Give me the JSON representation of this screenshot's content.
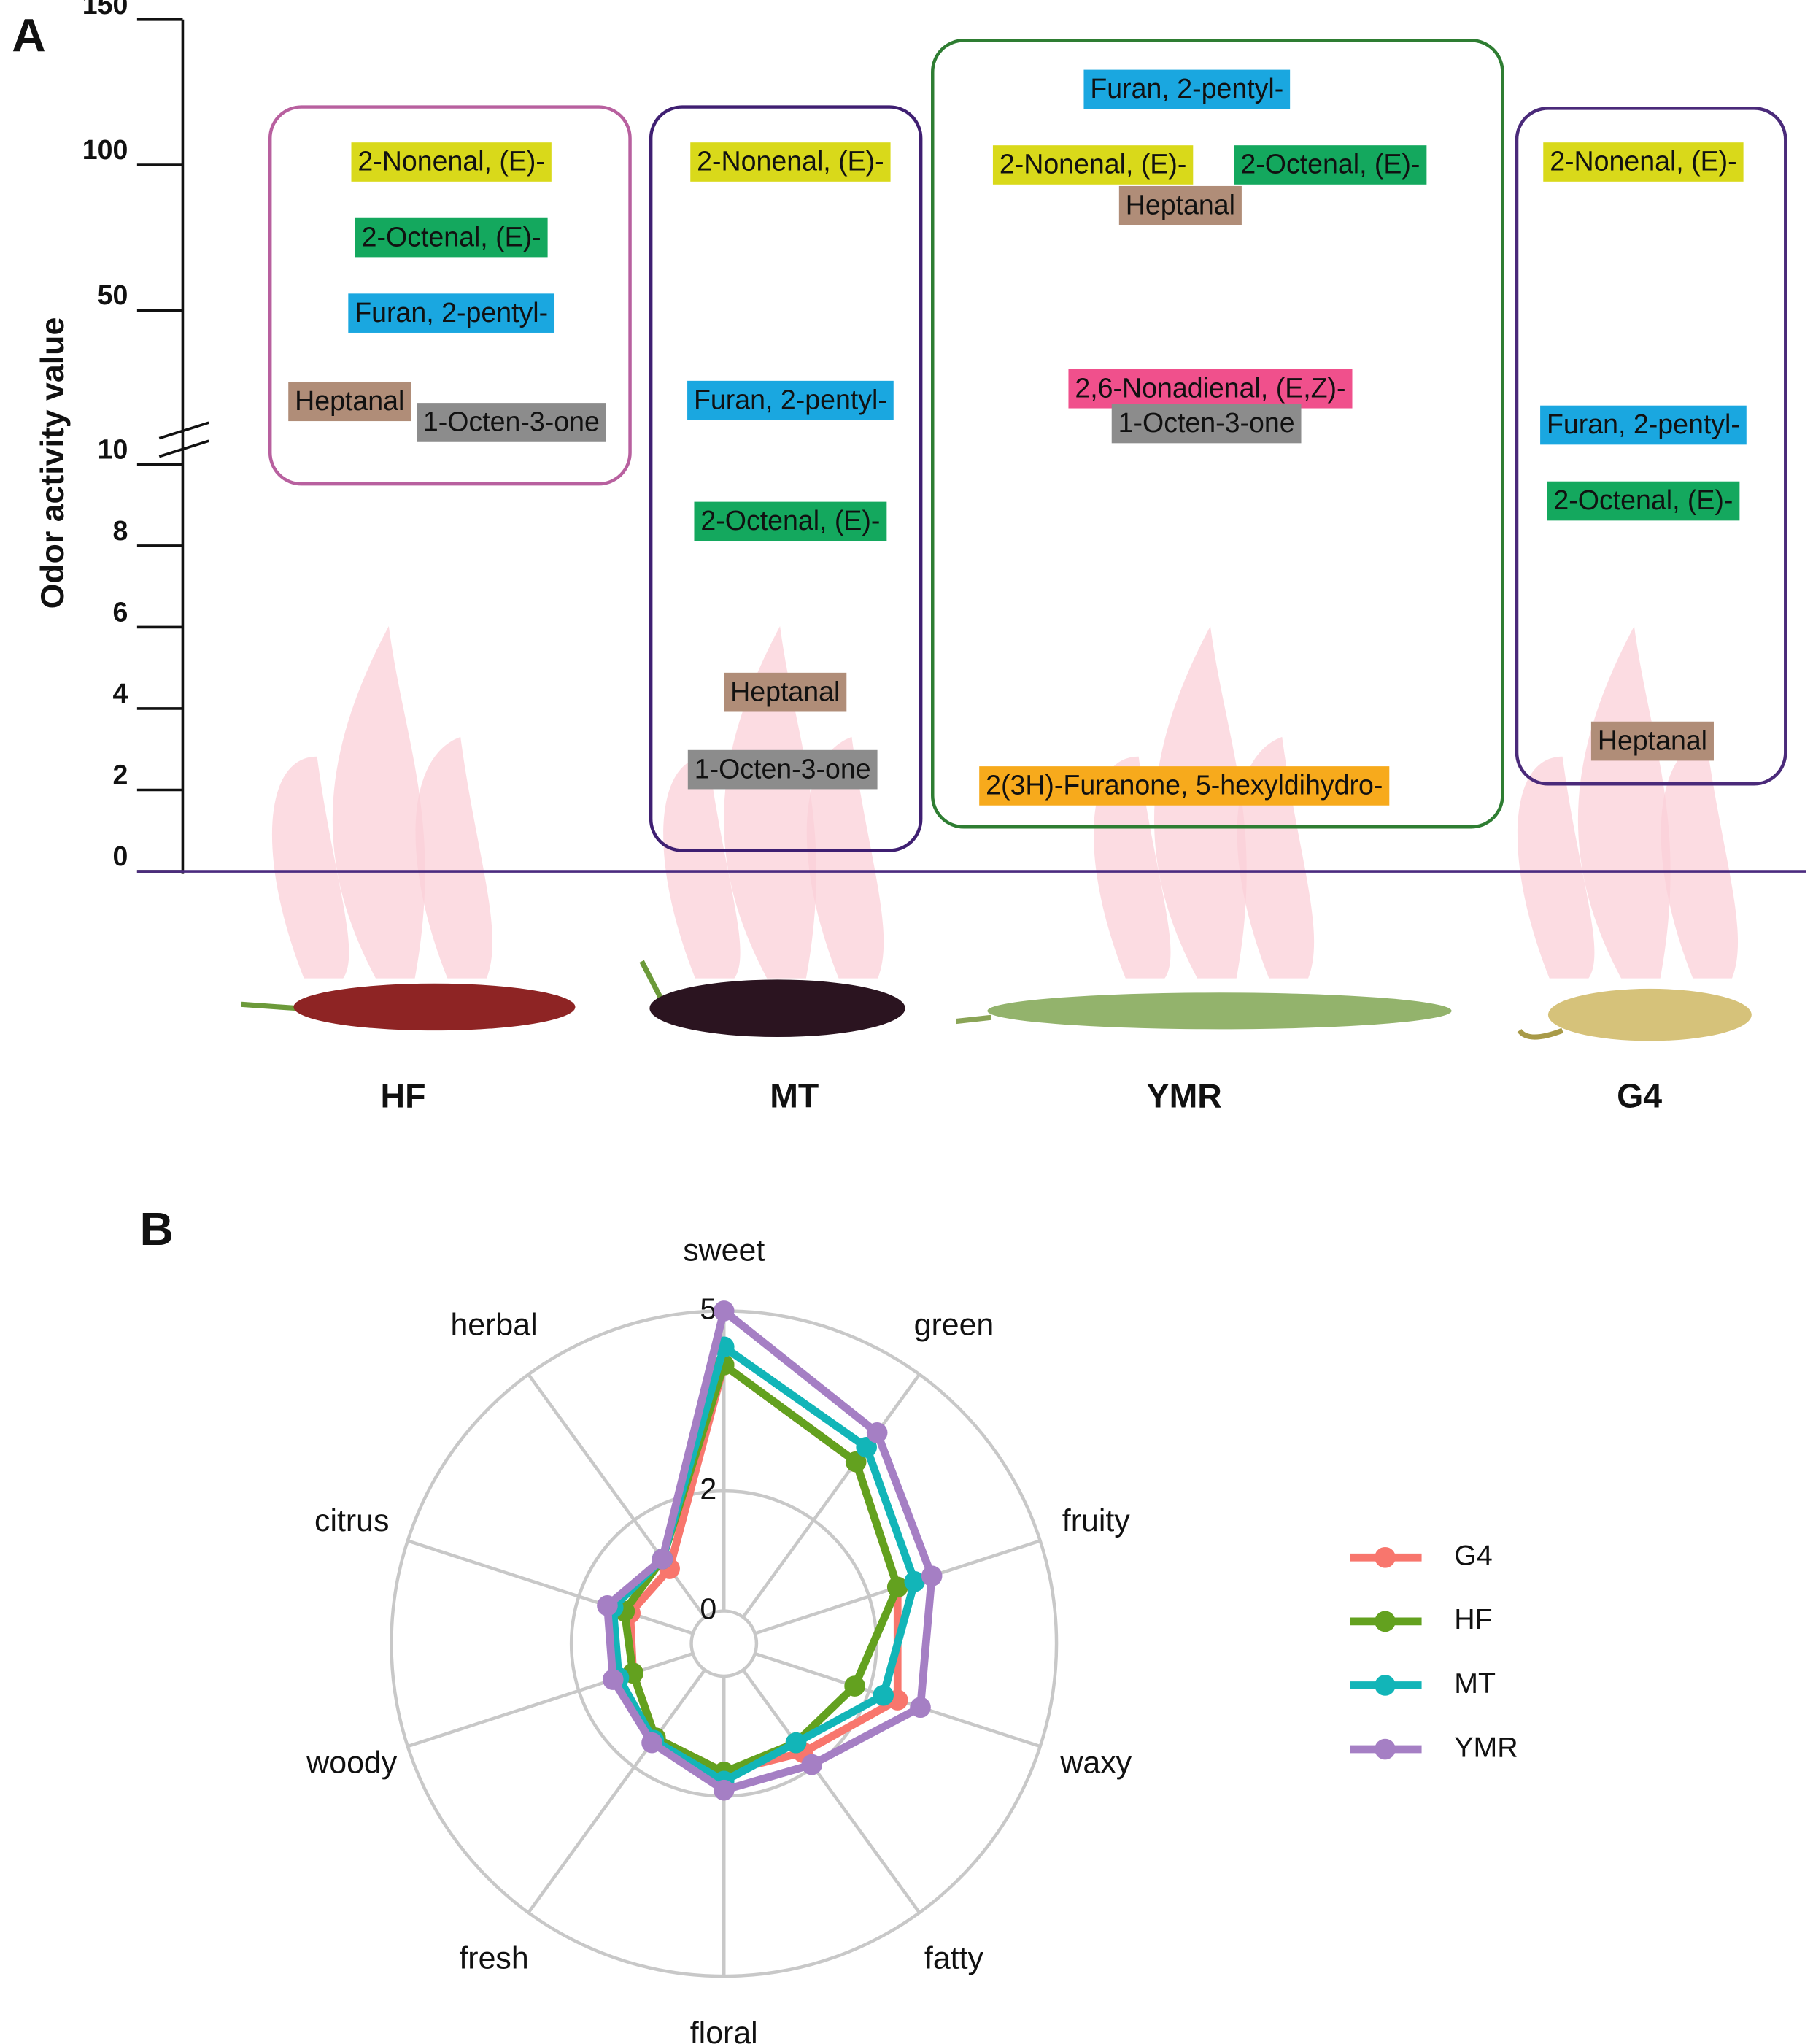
{
  "chart_data": [
    {
      "type": "oav-labels",
      "panel_label": "A",
      "ylabel": "Odor activity value",
      "ylim": [
        0,
        150
      ],
      "axis_break": 10,
      "yticks": [
        0,
        2,
        4,
        6,
        8,
        10,
        50,
        100,
        150
      ],
      "groups": [
        {
          "name": "HF",
          "color": "#b8609f",
          "compounds": [
            {
              "name": "2-Nonenal, (E)-",
              "value": 101,
              "color": "#d9d91a"
            },
            {
              "name": "2-Octenal, (E)-",
              "value": 75,
              "color": "#14a85e"
            },
            {
              "name": "Furan, 2-pentyl-",
              "value": 49,
              "color": "#1aa7e0"
            },
            {
              "name": "Heptanal",
              "value": 18.6,
              "color": "#b08d78"
            },
            {
              "name": "1-Octen-3-one",
              "value": 11.4,
              "color": "#8c8c8c"
            }
          ]
        },
        {
          "name": "MT",
          "color": "#3f1f72",
          "compounds": [
            {
              "name": "2-Nonenal, (E)-",
              "value": 101,
              "color": "#d9d91a"
            },
            {
              "name": "Furan, 2-pentyl-",
              "value": 19,
              "color": "#1aa7e0"
            },
            {
              "name": "2-Octenal, (E)-",
              "value": 8.6,
              "color": "#14a85e"
            },
            {
              "name": "Heptanal",
              "value": 4.4,
              "color": "#b08d78"
            },
            {
              "name": "1-Octen-3-one",
              "value": 2.5,
              "color": "#8c8c8c"
            }
          ]
        },
        {
          "name": "YMR",
          "color": "#2e7d32",
          "compounds": [
            {
              "name": "Furan, 2-pentyl-",
              "value": 126,
              "color": "#1aa7e0"
            },
            {
              "name": "2-Nonenal, (E)-",
              "value": 100,
              "color": "#d9d91a"
            },
            {
              "name": "2-Octenal, (E)-",
              "value": 100,
              "color": "#14a85e"
            },
            {
              "name": "Heptanal",
              "value": 86,
              "color": "#b08d78"
            },
            {
              "name": "2,6-Nonadienal, (E,Z)-",
              "value": 23,
              "color": "#f0508c"
            },
            {
              "name": "1-Octen-3-one",
              "value": 11,
              "color": "#8c8c8c"
            },
            {
              "name": "2(3H)-Furanone, 5-hexyldihydro-",
              "value": 2.1,
              "color": "#f7aa1c"
            }
          ]
        },
        {
          "name": "G4",
          "color": "#4a2a7a",
          "compounds": [
            {
              "name": "2-Nonenal, (E)-",
              "value": 101,
              "color": "#d9d91a"
            },
            {
              "name": "Furan, 2-pentyl-",
              "value": 10.5,
              "color": "#1aa7e0"
            },
            {
              "name": "2-Octenal, (E)-",
              "value": 9.1,
              "color": "#14a85e"
            },
            {
              "name": "Heptanal",
              "value": 3.2,
              "color": "#b08d78"
            }
          ]
        }
      ]
    },
    {
      "type": "radar",
      "panel_label": "B",
      "categories": [
        "sweet",
        "green",
        "fruity",
        "waxy",
        "fatty",
        "floral",
        "fresh",
        "woody",
        "citrus",
        "herbal"
      ],
      "rlim": [
        0,
        5
      ],
      "rticks": [
        0,
        2,
        5
      ],
      "series": [
        {
          "name": "G4",
          "color": "#f8766d",
          "values": [
            4.1,
            3.2,
            2.5,
            2.5,
            1.7,
            1.6,
            1.4,
            1.05,
            1.1,
            1.0
          ]
        },
        {
          "name": "HF",
          "color": "#63a11f",
          "values": [
            4.1,
            3.2,
            2.5,
            1.75,
            1.5,
            1.6,
            1.4,
            1.05,
            1.2,
            1.2
          ]
        },
        {
          "name": "MT",
          "color": "#12b5b8",
          "values": [
            4.4,
            3.5,
            2.8,
            2.25,
            1.5,
            1.75,
            1.45,
            1.3,
            1.4,
            1.2
          ]
        },
        {
          "name": "YMR",
          "color": "#a57fc4",
          "values": [
            5,
            3.8,
            3.1,
            2.9,
            1.95,
            1.9,
            1.5,
            1.4,
            1.5,
            1.2
          ]
        }
      ]
    }
  ]
}
